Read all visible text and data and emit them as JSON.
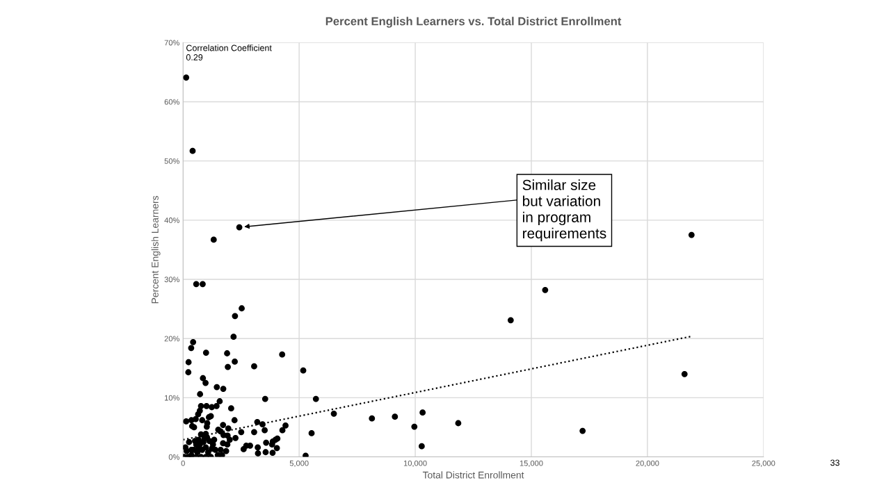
{
  "chart_data": {
    "type": "scatter",
    "title": "Percent English Learners vs. Total District Enrollment",
    "xlabel": "Total District Enrollment",
    "ylabel": "Percent English Learners",
    "xlim": [
      0,
      25000
    ],
    "xticks": [
      0,
      {
        "value": 5000,
        "label": "5,000"
      },
      {
        "value": 10000,
        "label": "10,000"
      },
      {
        "value": 15000,
        "label": "15,000"
      },
      {
        "value": 20000,
        "label": "20,000"
      },
      {
        "value": 25000,
        "label": "25,000"
      }
    ],
    "ylim": [
      0,
      70
    ],
    "yticks": [
      {
        "value": 0,
        "label": "0%"
      },
      {
        "value": 10,
        "label": "10%"
      },
      {
        "value": 20,
        "label": "20%"
      },
      {
        "value": 30,
        "label": "30%"
      },
      {
        "value": 40,
        "label": "40%"
      },
      {
        "value": 50,
        "label": "50%"
      },
      {
        "value": 60,
        "label": "60%"
      },
      {
        "value": 70,
        "label": "70%"
      }
    ],
    "grid": true,
    "legend": false,
    "marker": "circle",
    "series": [
      {
        "color": "#000000",
        "x": [
          134,
          412,
          2423,
          1320,
          567,
          845,
          2526,
          2237,
          2175,
          433,
          350,
          990,
          1897,
          4268,
          237,
          2227,
          1928,
          3062,
          227,
          5176,
          856,
          969,
          1454,
          1732,
          732,
          3536,
          5722,
          1577,
          6495,
          8134,
          9124,
          10317,
          9962,
          10279,
          11853,
          14112,
          15596,
          17208,
          21599,
          21900,
          773,
          1010,
          1237,
          1443,
          2072,
          722,
          650,
          1196,
          1113,
          134,
          361,
          546,
          825,
          2217,
          1041,
          3196,
          3423,
          392,
          474,
          1021,
          1722,
          4413,
          4279,
          1516,
          1619,
          1949,
          3516,
          1742,
          1918,
          2505,
          3062,
          5536,
          979,
          2258,
          2010,
          4062,
          3979,
          3866,
          3578,
          3217,
          2722,
          2887,
          2609,
          3835,
          4041,
          3557,
          3856,
          3227,
          5279,
          1722,
          1907,
          1619,
          1680,
          1856,
          103,
          155,
          52,
          206,
          361,
          464,
          567,
          670,
          773,
          876,
          979,
          1082,
          1196,
          1289,
          1392,
          1495,
          773,
          567,
          979,
          361,
          515,
          722,
          825,
          928,
          1134,
          1237,
          619,
          258,
          1340,
          1031,
          670,
          309
        ],
        "values": [
          64.1,
          51.7,
          38.8,
          36.7,
          29.2,
          29.2,
          25.1,
          23.8,
          20.3,
          19.4,
          18.4,
          17.6,
          17.5,
          17.3,
          16.0,
          16.1,
          15.2,
          15.3,
          14.3,
          14.6,
          13.3,
          12.5,
          11.8,
          11.5,
          10.6,
          9.8,
          9.8,
          9.4,
          7.3,
          6.5,
          6.8,
          7.5,
          5.1,
          1.8,
          5.7,
          23.1,
          28.2,
          4.4,
          14.0,
          37.5,
          8.6,
          8.6,
          8.4,
          8.6,
          8.2,
          7.8,
          7.2,
          6.9,
          6.7,
          6.0,
          6.2,
          6.4,
          6.2,
          6.2,
          5.7,
          5.9,
          5.5,
          5.2,
          5.0,
          5.1,
          5.4,
          5.3,
          4.5,
          4.6,
          4.3,
          4.8,
          4.5,
          3.7,
          3.6,
          4.2,
          4.2,
          4.0,
          3.9,
          3.2,
          2.9,
          3.1,
          2.9,
          2.6,
          2.4,
          1.6,
          1.9,
          1.9,
          1.3,
          2.1,
          1.5,
          0.8,
          0.7,
          0.6,
          0.2,
          2.3,
          2.1,
          1.2,
          0.3,
          1.0,
          1.6,
          1.0,
          0,
          0,
          0.3,
          1.2,
          2.1,
          2.9,
          3.8,
          2.5,
          1.6,
          0.8,
          0,
          2.1,
          1.2,
          0.3,
          0,
          0,
          0,
          1.2,
          2.7,
          2.1,
          1.2,
          3.1,
          2.7,
          1.4,
          0.8,
          2.5,
          2.9,
          3.3,
          1.4,
          0
        ]
      },
      {
        "type": "line",
        "color": "#000000",
        "line_style": "dotted",
        "marker": "none",
        "x": [
          0,
          21929
        ],
        "values": [
          2.9,
          20.4
        ]
      }
    ],
    "annotations": [
      "Correlation Coefficient\n0.29",
      {
        "text": "Similar size\nbut variation\nin program\nrequirements",
        "x": 2423,
        "y": 38.8
      },
      "33"
    ]
  }
}
